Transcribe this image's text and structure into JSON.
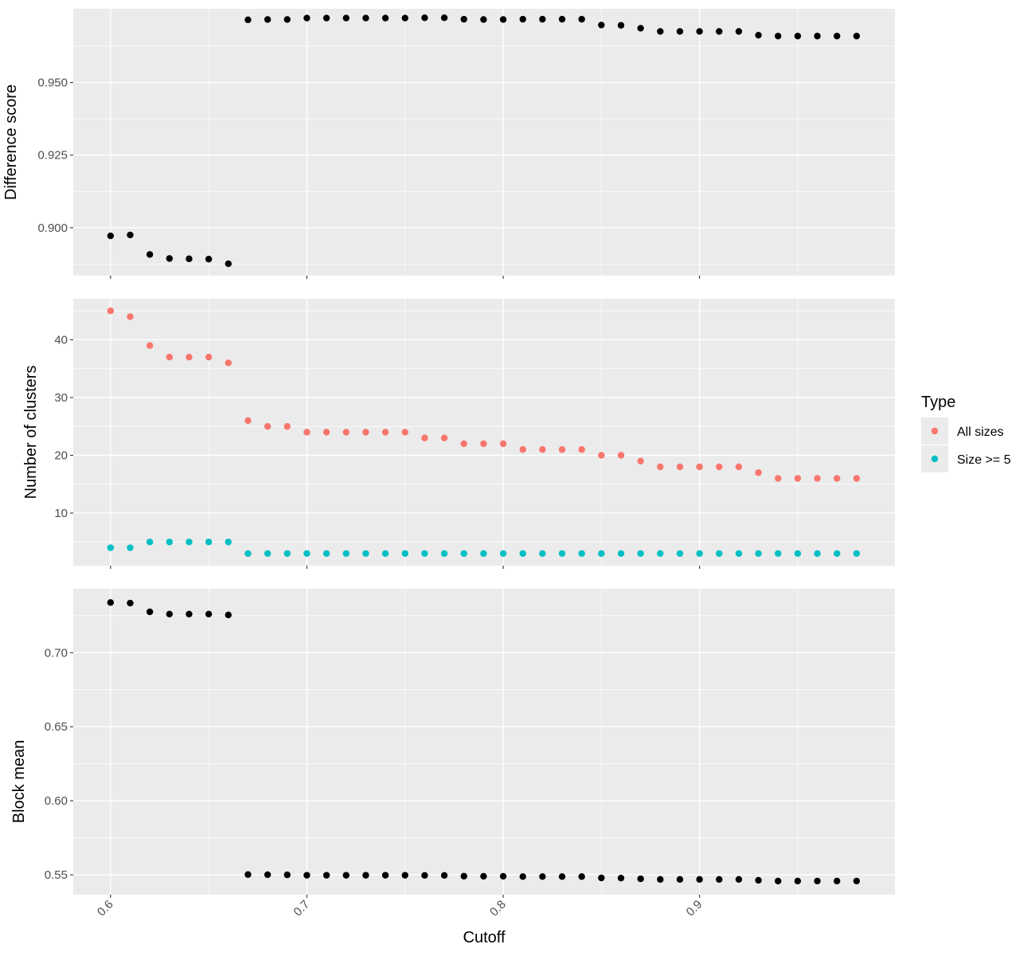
{
  "chart_data": [
    {
      "type": "scatter",
      "ylabel": "Difference score",
      "xlim": [
        0.581,
        0.9995
      ],
      "ylim": [
        0.8835,
        0.9754
      ],
      "yticks": [
        0.9,
        0.925,
        0.95
      ],
      "ytick_labels": [
        "0.900",
        "0.925",
        "0.950"
      ],
      "grid": true,
      "series": [
        {
          "color": "#000000",
          "x": [
            0.6,
            0.61,
            0.62,
            0.63,
            0.64,
            0.65,
            0.66,
            0.67,
            0.68,
            0.69,
            0.7,
            0.71,
            0.72,
            0.73,
            0.74,
            0.75,
            0.76,
            0.77,
            0.78,
            0.79,
            0.8,
            0.81,
            0.82,
            0.83,
            0.84,
            0.85,
            0.86,
            0.87,
            0.88,
            0.89,
            0.9,
            0.91,
            0.92,
            0.93,
            0.94,
            0.95,
            0.96,
            0.97,
            0.98
          ],
          "y": [
            0.8972,
            0.8975,
            0.8908,
            0.8894,
            0.8893,
            0.8892,
            0.8876,
            0.9716,
            0.9717,
            0.9717,
            0.9722,
            0.9722,
            0.9722,
            0.9722,
            0.9722,
            0.9722,
            0.9723,
            0.9723,
            0.9718,
            0.9717,
            0.9717,
            0.9718,
            0.9718,
            0.9718,
            0.9718,
            0.9698,
            0.9697,
            0.9687,
            0.9676,
            0.9676,
            0.9676,
            0.9676,
            0.9676,
            0.9663,
            0.966,
            0.966,
            0.966,
            0.966,
            0.966
          ]
        }
      ]
    },
    {
      "type": "scatter",
      "ylabel": "Number of clusters",
      "xlim": [
        0.581,
        0.9995
      ],
      "ylim": [
        0.9,
        47.1
      ],
      "yticks": [
        10,
        20,
        30,
        40
      ],
      "ytick_labels": [
        "10",
        "20",
        "30",
        "40"
      ],
      "grid": true,
      "series": [
        {
          "name": "All sizes",
          "color": "#f8766d",
          "x": [
            0.6,
            0.61,
            0.62,
            0.63,
            0.64,
            0.65,
            0.66,
            0.67,
            0.68,
            0.69,
            0.7,
            0.71,
            0.72,
            0.73,
            0.74,
            0.75,
            0.76,
            0.77,
            0.78,
            0.79,
            0.8,
            0.81,
            0.82,
            0.83,
            0.84,
            0.85,
            0.86,
            0.87,
            0.88,
            0.89,
            0.9,
            0.91,
            0.92,
            0.93,
            0.94,
            0.95,
            0.96,
            0.97,
            0.98
          ],
          "y": [
            45,
            44,
            39,
            37,
            37,
            37,
            36,
            26,
            25,
            25,
            24,
            24,
            24,
            24,
            24,
            24,
            23,
            23,
            22,
            22,
            22,
            21,
            21,
            21,
            21,
            20,
            20,
            19,
            18,
            18,
            18,
            18,
            18,
            17,
            16,
            16,
            16,
            16,
            16
          ]
        },
        {
          "name": "Size >= 5",
          "color": "#00bfc4",
          "x": [
            0.6,
            0.61,
            0.62,
            0.63,
            0.64,
            0.65,
            0.66,
            0.67,
            0.68,
            0.69,
            0.7,
            0.71,
            0.72,
            0.73,
            0.74,
            0.75,
            0.76,
            0.77,
            0.78,
            0.79,
            0.8,
            0.81,
            0.82,
            0.83,
            0.84,
            0.85,
            0.86,
            0.87,
            0.88,
            0.89,
            0.9,
            0.91,
            0.92,
            0.93,
            0.94,
            0.95,
            0.96,
            0.97,
            0.98
          ],
          "y": [
            4,
            4,
            5,
            5,
            5,
            5,
            5,
            3,
            3,
            3,
            3,
            3,
            3,
            3,
            3,
            3,
            3,
            3,
            3,
            3,
            3,
            3,
            3,
            3,
            3,
            3,
            3,
            3,
            3,
            3,
            3,
            3,
            3,
            3,
            3,
            3,
            3,
            3,
            3
          ]
        }
      ],
      "legend": {
        "title": "Type",
        "position": "right",
        "items": [
          {
            "label": "All sizes",
            "color": "#f8766d"
          },
          {
            "label": "Size >= 5",
            "color": "#00bfc4"
          }
        ]
      }
    },
    {
      "type": "scatter",
      "xlabel": "Cutoff",
      "ylabel": "Block mean",
      "xlim": [
        0.581,
        0.9995
      ],
      "ylim": [
        0.5366,
        0.7432
      ],
      "xticks": [
        0.6,
        0.7,
        0.8,
        0.9
      ],
      "xtick_labels": [
        "0.6",
        "0.7",
        "0.8",
        "0.9"
      ],
      "yticks": [
        0.55,
        0.6,
        0.65,
        0.7
      ],
      "ytick_labels": [
        "0.55",
        "0.60",
        "0.65",
        "0.70"
      ],
      "grid": true,
      "series": [
        {
          "color": "#000000",
          "x": [
            0.6,
            0.61,
            0.62,
            0.63,
            0.64,
            0.65,
            0.66,
            0.67,
            0.68,
            0.69,
            0.7,
            0.71,
            0.72,
            0.73,
            0.74,
            0.75,
            0.76,
            0.77,
            0.78,
            0.79,
            0.8,
            0.81,
            0.82,
            0.83,
            0.84,
            0.85,
            0.86,
            0.87,
            0.88,
            0.89,
            0.9,
            0.91,
            0.92,
            0.93,
            0.94,
            0.95,
            0.96,
            0.97,
            0.98
          ],
          "y": [
            0.7339,
            0.7335,
            0.7276,
            0.7261,
            0.7261,
            0.7261,
            0.7255,
            0.5502,
            0.5501,
            0.55,
            0.5497,
            0.5497,
            0.5497,
            0.5497,
            0.5497,
            0.5497,
            0.5496,
            0.5496,
            0.5491,
            0.549,
            0.549,
            0.5488,
            0.5488,
            0.5488,
            0.5488,
            0.5479,
            0.5478,
            0.5473,
            0.5469,
            0.5469,
            0.5469,
            0.5469,
            0.5469,
            0.5463,
            0.5458,
            0.5458,
            0.5458,
            0.5458,
            0.5458
          ]
        }
      ]
    }
  ]
}
